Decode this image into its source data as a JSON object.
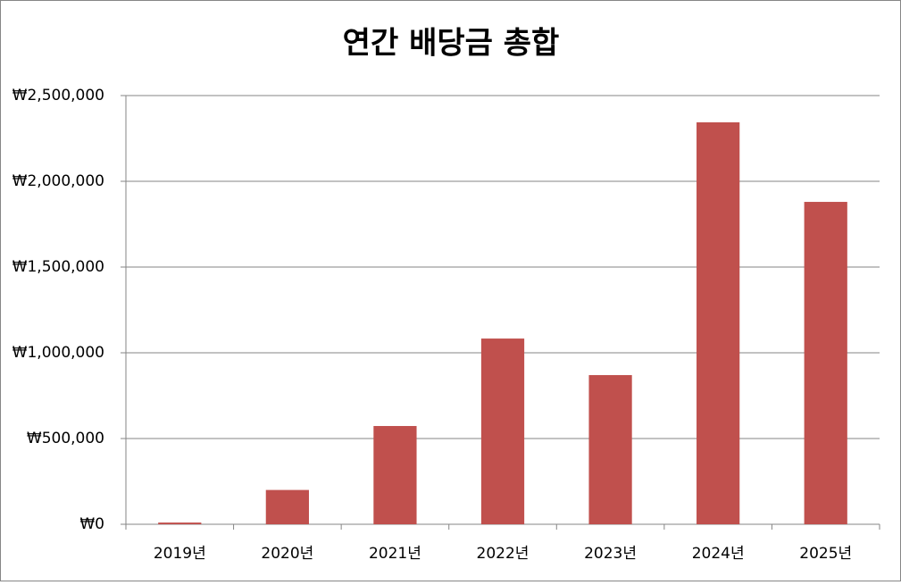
{
  "chart_data": {
    "type": "bar",
    "title": "연간 배당금 총합",
    "categories": [
      "2019년",
      "2020년",
      "2021년",
      "2022년",
      "2023년",
      "2024년",
      "2025년"
    ],
    "values": [
      10000,
      200000,
      573000,
      1083000,
      870000,
      2344000,
      1880000
    ],
    "color": "#c0504d",
    "ylim": [
      0,
      2500000
    ],
    "yticks": [
      {
        "value": 0,
        "label": "₩0"
      },
      {
        "value": 500000,
        "label": "₩500,000"
      },
      {
        "value": 1000000,
        "label": "₩1,000,000"
      },
      {
        "value": 1500000,
        "label": "₩1,500,000"
      },
      {
        "value": 2000000,
        "label": "₩2,000,000"
      },
      {
        "value": 2500000,
        "label": "₩2,500,000"
      }
    ],
    "grid": true
  }
}
